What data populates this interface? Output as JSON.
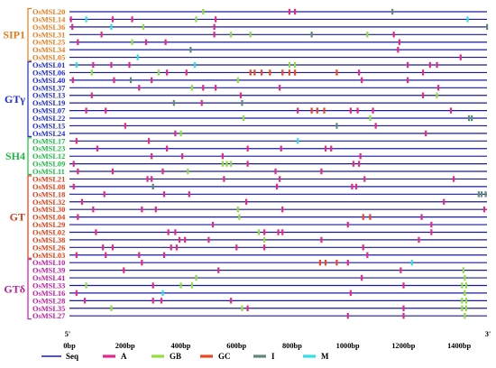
{
  "axis": {
    "min": 0,
    "max": 1500,
    "ticks": [
      {
        "value": 0,
        "label": "0bp"
      },
      {
        "value": 200,
        "label": "200bp"
      },
      {
        "value": 400,
        "label": "400bp"
      },
      {
        "value": 600,
        "label": "600bp"
      },
      {
        "value": 800,
        "label": "800bp"
      },
      {
        "value": 1000,
        "label": "1000bp"
      },
      {
        "value": 1200,
        "label": "1200bp"
      },
      {
        "value": 1400,
        "label": "1400bp"
      }
    ],
    "left_end_label": "5'",
    "right_end_label": "3'"
  },
  "element_types": [
    {
      "key": "A",
      "label": "A",
      "color": "#e8268c"
    },
    {
      "key": "GB",
      "label": "GB",
      "color": "#8fe03c"
    },
    {
      "key": "GC",
      "label": "GC",
      "color": "#ee4422"
    },
    {
      "key": "I",
      "label": "I",
      "color": "#5f8a7a"
    },
    {
      "key": "M",
      "label": "M",
      "color": "#2fe0e8"
    }
  ],
  "legend": {
    "seq_label": "Seq",
    "seq_color": "#1a1aa0"
  },
  "groups": [
    {
      "name": "SIP1",
      "color": "#e87a1a",
      "genes": [
        {
          "name": "OsMSL20",
          "elements": [
            [
              480,
              "GB"
            ],
            [
              790,
              "A"
            ],
            [
              810,
              "A"
            ],
            [
              1160,
              "I"
            ]
          ]
        },
        {
          "name": "OsMSL14",
          "elements": [
            [
              5,
              "A"
            ],
            [
              60,
              "M"
            ],
            [
              155,
              "A"
            ],
            [
              225,
              "A"
            ],
            [
              455,
              "GB"
            ],
            [
              525,
              "A"
            ],
            [
              1430,
              "M"
            ]
          ]
        },
        {
          "name": "OsMSL36",
          "elements": [
            [
              10,
              "A"
            ],
            [
              150,
              "M"
            ],
            [
              265,
              "GB"
            ],
            [
              520,
              "A"
            ],
            [
              1500,
              "I"
            ]
          ]
        },
        {
          "name": "OsMSL31",
          "elements": [
            [
              115,
              "A"
            ],
            [
              520,
              "A"
            ],
            [
              580,
              "GB"
            ],
            [
              650,
              "GB"
            ],
            [
              870,
              "I"
            ],
            [
              1070,
              "GB"
            ],
            [
              1165,
              "A"
            ]
          ]
        },
        {
          "name": "OsMSL25",
          "elements": [
            [
              30,
              "A"
            ],
            [
              225,
              "GB"
            ],
            [
              275,
              "A"
            ],
            [
              345,
              "A"
            ],
            [
              1185,
              "A"
            ]
          ]
        },
        {
          "name": "OsMSL34",
          "elements": [
            [
              435,
              "I"
            ],
            [
              1180,
              "A"
            ]
          ]
        },
        {
          "name": "OsMSL05",
          "elements": [
            [
              245,
              "M"
            ],
            [
              1405,
              "A"
            ]
          ]
        }
      ]
    },
    {
      "name": "GTγ",
      "color": "#1f2ad0",
      "genes": [
        {
          "name": "OsMSL01",
          "elements": [
            [
              25,
              "M"
            ],
            [
              85,
              "A"
            ],
            [
              150,
              "A"
            ],
            [
              215,
              "A"
            ],
            [
              450,
              "M"
            ],
            [
              790,
              "GB"
            ],
            [
              810,
              "GB"
            ],
            [
              1215,
              "A"
            ],
            [
              1295,
              "A"
            ],
            [
              1320,
              "A"
            ]
          ]
        },
        {
          "name": "OsMSL06",
          "elements": [
            [
              80,
              "GB"
            ],
            [
              320,
              "GB"
            ],
            [
              350,
              "A"
            ],
            [
              420,
              "A"
            ],
            [
              650,
              "GC"
            ],
            [
              665,
              "GC"
            ],
            [
              690,
              "GC"
            ],
            [
              720,
              "GC"
            ],
            [
              765,
              "GC"
            ],
            [
              790,
              "GC"
            ],
            [
              810,
              "GC"
            ],
            [
              960,
              "GC"
            ],
            [
              1040,
              "A"
            ],
            [
              1270,
              "A"
            ]
          ]
        },
        {
          "name": "OsMSL40",
          "elements": [
            [
              12,
              "A"
            ],
            [
              160,
              "A"
            ],
            [
              220,
              "I"
            ],
            [
              295,
              "A"
            ],
            [
              605,
              "GB"
            ],
            [
              1050,
              "A"
            ],
            [
              1215,
              "A"
            ]
          ]
        },
        {
          "name": "OsMSL37",
          "elements": [
            [
              250,
              "A"
            ],
            [
              440,
              "GB"
            ],
            [
              480,
              "A"
            ],
            [
              525,
              "A"
            ],
            [
              755,
              "A"
            ],
            [
              1325,
              "A"
            ]
          ]
        },
        {
          "name": "OsMSL13",
          "elements": [
            [
              80,
              "A"
            ],
            [
              615,
              "A"
            ],
            [
              1270,
              "A"
            ],
            [
              1320,
              "GB"
            ]
          ]
        },
        {
          "name": "OsMSL19",
          "elements": [
            [
              375,
              "I"
            ],
            [
              475,
              "A"
            ],
            [
              620,
              "I"
            ]
          ]
        },
        {
          "name": "OsMSL07",
          "elements": [
            [
              60,
              "A"
            ],
            [
              130,
              "A"
            ],
            [
              820,
              "A"
            ],
            [
              870,
              "GC"
            ],
            [
              890,
              "GC"
            ],
            [
              915,
              "GC"
            ],
            [
              1010,
              "A"
            ],
            [
              1035,
              "A"
            ],
            [
              1090,
              "A"
            ],
            [
              1370,
              "A"
            ]
          ]
        },
        {
          "name": "OsMSL22",
          "elements": [
            [
              625,
              "GB"
            ],
            [
              1080,
              "GB"
            ],
            [
              1435,
              "I"
            ],
            [
              1445,
              "I"
            ]
          ]
        },
        {
          "name": "OsMSL15",
          "elements": [
            [
              200,
              "A"
            ],
            [
              960,
              "I"
            ],
            [
              1100,
              "A"
            ]
          ]
        },
        {
          "name": "OsMSL24",
          "elements": [
            [
              380,
              "A"
            ],
            [
              400,
              "GB"
            ],
            [
              1280,
              "A"
            ]
          ]
        }
      ]
    },
    {
      "name": "SH4",
      "color": "#1aba40",
      "genes": [
        {
          "name": "OsMSL17",
          "elements": [
            [
              25,
              "A"
            ],
            [
              285,
              "A"
            ],
            [
              820,
              "M"
            ]
          ]
        },
        {
          "name": "OsMSL23",
          "elements": [
            [
              100,
              "A"
            ],
            [
              350,
              "A"
            ],
            [
              640,
              "A"
            ],
            [
              760,
              "A"
            ],
            [
              920,
              "A"
            ],
            [
              940,
              "A"
            ]
          ]
        },
        {
          "name": "OsMSL12",
          "elements": [
            [
              295,
              "A"
            ],
            [
              405,
              "A"
            ],
            [
              550,
              "A"
            ],
            [
              1045,
              "A"
            ]
          ]
        },
        {
          "name": "OsMSL09",
          "elements": [
            [
              15,
              "A"
            ],
            [
              550,
              "GB"
            ],
            [
              565,
              "GB"
            ],
            [
              580,
              "GB"
            ],
            [
              640,
              "A"
            ],
            [
              1020,
              "A"
            ],
            [
              1040,
              "A"
            ]
          ]
        },
        {
          "name": "OsMSL11",
          "elements": [
            [
              30,
              "A"
            ],
            [
              155,
              "A"
            ],
            [
              335,
              "A"
            ],
            [
              425,
              "GB"
            ],
            [
              740,
              "A"
            ],
            [
              905,
              "A"
            ]
          ]
        }
      ]
    },
    {
      "name": "GT",
      "color": "#e03a10",
      "genes": [
        {
          "name": "OsMSL21",
          "elements": [
            [
              280,
              "A"
            ],
            [
              295,
              "A"
            ],
            [
              555,
              "A"
            ],
            [
              755,
              "A"
            ],
            [
              1060,
              "A"
            ],
            [
              1380,
              "A"
            ]
          ]
        },
        {
          "name": "OsMSL08",
          "elements": [
            [
              15,
              "A"
            ],
            [
              300,
              "I"
            ],
            [
              745,
              "A"
            ],
            [
              1015,
              "A"
            ],
            [
              1030,
              "A"
            ]
          ]
        },
        {
          "name": "OsMSL18",
          "elements": [
            [
              125,
              "A"
            ],
            [
              340,
              "A"
            ],
            [
              430,
              "A"
            ],
            [
              1470,
              "I"
            ],
            [
              1480,
              "I"
            ],
            [
              1495,
              "I"
            ]
          ]
        },
        {
          "name": "OsMSL32",
          "elements": [
            [
              45,
              "A"
            ],
            [
              635,
              "A"
            ],
            [
              1345,
              "A"
            ]
          ]
        },
        {
          "name": "OsMSL30",
          "elements": [
            [
              85,
              "A"
            ],
            [
              260,
              "A"
            ],
            [
              310,
              "A"
            ],
            [
              605,
              "GB"
            ],
            [
              765,
              "A"
            ],
            [
              1490,
              "A"
            ]
          ]
        },
        {
          "name": "OsMSL04",
          "elements": [
            [
              30,
              "A"
            ],
            [
              610,
              "GB"
            ],
            [
              1055,
              "GC"
            ],
            [
              1080,
              "GC"
            ],
            [
              1265,
              "A"
            ]
          ]
        },
        {
          "name": "OsMSL29",
          "elements": [
            [
              515,
              "A"
            ],
            [
              1000,
              "A"
            ],
            [
              1300,
              "A"
            ]
          ]
        },
        {
          "name": "OsMSL02",
          "elements": [
            [
              95,
              "A"
            ],
            [
              355,
              "A"
            ],
            [
              380,
              "A"
            ],
            [
              680,
              "GB"
            ],
            [
              700,
              "A"
            ],
            [
              750,
              "A"
            ],
            [
              765,
              "A"
            ],
            [
              1300,
              "A"
            ]
          ]
        },
        {
          "name": "OsMSL38",
          "elements": [
            [
              395,
              "A"
            ],
            [
              415,
              "A"
            ],
            [
              500,
              "A"
            ],
            [
              700,
              "GB"
            ],
            [
              905,
              "A"
            ],
            [
              1255,
              "A"
            ]
          ]
        },
        {
          "name": "OsMSL26",
          "elements": [
            [
              120,
              "A"
            ],
            [
              155,
              "A"
            ],
            [
              365,
              "A"
            ],
            [
              385,
              "A"
            ],
            [
              600,
              "A"
            ],
            [
              700,
              "A"
            ],
            [
              1055,
              "A"
            ]
          ]
        },
        {
          "name": "OsMSL03",
          "elements": [
            [
              25,
              "A"
            ],
            [
              130,
              "A"
            ],
            [
              250,
              "A"
            ],
            [
              340,
              "A"
            ],
            [
              1070,
              "A"
            ]
          ]
        }
      ]
    },
    {
      "name": "GTδ",
      "color": "#c01aa0",
      "genes": [
        {
          "name": "OsMSL10",
          "elements": [
            [
              260,
              "A"
            ],
            [
              900,
              "GC"
            ],
            [
              920,
              "GC"
            ],
            [
              960,
              "GC"
            ],
            [
              1000,
              "A"
            ],
            [
              1230,
              "M"
            ]
          ]
        },
        {
          "name": "OsMSL39",
          "elements": [
            [
              195,
              "A"
            ],
            [
              535,
              "A"
            ],
            [
              1190,
              "A"
            ],
            [
              1415,
              "GB"
            ]
          ]
        },
        {
          "name": "OsMSL41",
          "elements": [
            [
              455,
              "GB"
            ],
            [
              1050,
              "A"
            ],
            [
              1420,
              "GB"
            ]
          ]
        },
        {
          "name": "OsMSL33",
          "elements": [
            [
              60,
              "GB"
            ],
            [
              300,
              "A"
            ],
            [
              400,
              "GB"
            ],
            [
              440,
              "GB"
            ],
            [
              1200,
              "A"
            ],
            [
              1410,
              "GB"
            ],
            [
              1425,
              "GB"
            ]
          ]
        },
        {
          "name": "OsMSL16",
          "elements": [
            [
              25,
              "A"
            ],
            [
              335,
              "M"
            ],
            [
              1010,
              "A"
            ],
            [
              1420,
              "GB"
            ]
          ]
        },
        {
          "name": "OsMSL28",
          "elements": [
            [
              55,
              "A"
            ],
            [
              300,
              "A"
            ],
            [
              330,
              "A"
            ],
            [
              580,
              "A"
            ],
            [
              1410,
              "GB"
            ],
            [
              1425,
              "GB"
            ]
          ]
        },
        {
          "name": "OsMSL35",
          "elements": [
            [
              150,
              "GB"
            ],
            [
              620,
              "GB"
            ],
            [
              640,
              "A"
            ],
            [
              1200,
              "A"
            ],
            [
              1410,
              "GB"
            ],
            [
              1425,
              "GB"
            ]
          ]
        },
        {
          "name": "OsMSL27",
          "elements": [
            [
              1000,
              "A"
            ],
            [
              1200,
              "A"
            ],
            [
              1420,
              "GB"
            ]
          ]
        }
      ]
    }
  ]
}
